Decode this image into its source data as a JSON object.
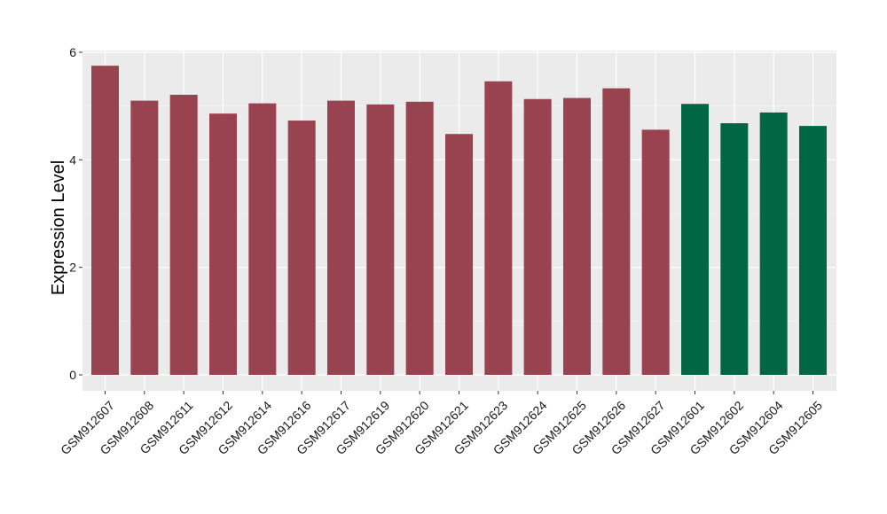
{
  "chart_data": {
    "type": "bar",
    "title": "",
    "xlabel": "",
    "ylabel": "Expression Level",
    "ylim": [
      0,
      6
    ],
    "yticks": [
      0,
      2,
      4,
      6
    ],
    "grid": true,
    "legend": "none",
    "categories": [
      "GSM912607",
      "GSM912608",
      "GSM912611",
      "GSM912612",
      "GSM912614",
      "GSM912616",
      "GSM912617",
      "GSM912619",
      "GSM912620",
      "GSM912621",
      "GSM912623",
      "GSM912624",
      "GSM912625",
      "GSM912626",
      "GSM912627",
      "GSM912601",
      "GSM912602",
      "GSM912604",
      "GSM912605"
    ],
    "values": [
      5.75,
      5.1,
      5.21,
      4.86,
      5.05,
      4.73,
      5.1,
      5.03,
      5.08,
      4.48,
      5.46,
      5.13,
      5.15,
      5.33,
      4.56,
      5.04,
      4.68,
      4.88,
      4.63
    ],
    "groups": [
      "a",
      "a",
      "a",
      "a",
      "a",
      "a",
      "a",
      "a",
      "a",
      "a",
      "a",
      "a",
      "a",
      "a",
      "a",
      "b",
      "b",
      "b",
      "b"
    ],
    "group_colors": {
      "a": "#9a4350",
      "b": "#006644"
    },
    "panel_color": "#ebebeb"
  }
}
